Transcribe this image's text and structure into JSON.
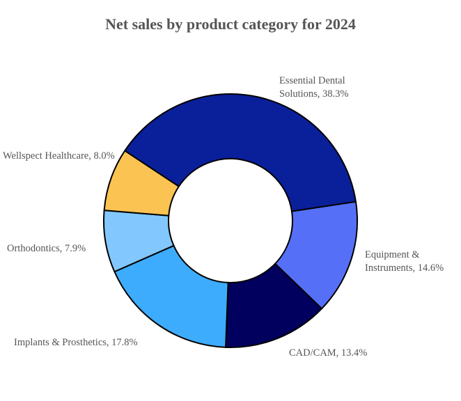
{
  "chart_data": {
    "type": "pie",
    "variant": "donut",
    "title": "Net sales by product category for 2024",
    "unit": "%",
    "slices": [
      {
        "name": "Essential Dental Solutions",
        "value": 38.3,
        "color": "#0a209a",
        "label_lines": [
          "Essential Dental",
          "Solutions, 38.3%"
        ]
      },
      {
        "name": "Equipment & Instruments",
        "value": 14.6,
        "color": "#5570f7",
        "label_lines": [
          "Equipment &",
          "Instruments, 14.6%"
        ]
      },
      {
        "name": "CAD/CAM",
        "value": 13.4,
        "color": "#01005e",
        "label_lines": [
          "CAD/CAM, 13.4%"
        ]
      },
      {
        "name": "Implants & Prosthetics",
        "value": 17.8,
        "color": "#3eacfc",
        "label_lines": [
          "Implants & Prosthetics, 17.8%"
        ]
      },
      {
        "name": "Orthodontics",
        "value": 7.9,
        "color": "#82c8fe",
        "label_lines": [
          "Orthodontics, 7.9%"
        ]
      },
      {
        "name": "Wellspect Healthcare",
        "value": 8.0,
        "color": "#fbc352",
        "label_lines": [
          "Wellspect Healthcare, 8.0%"
        ]
      }
    ],
    "legend": "none",
    "slice_outline_color": "#000000"
  }
}
